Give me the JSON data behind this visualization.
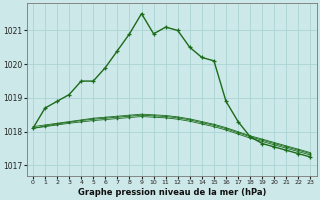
{
  "bg_color": "#cce8e8",
  "grid_color": "#aad4d4",
  "line_color": "#1a6b1a",
  "title": "Graphe pression niveau de la mer (hPa)",
  "xlim": [
    -0.5,
    23.5
  ],
  "ylim": [
    1016.7,
    1021.8
  ],
  "yticks": [
    1017,
    1018,
    1019,
    1020,
    1021
  ],
  "xticks": [
    0,
    1,
    2,
    3,
    4,
    5,
    6,
    7,
    8,
    9,
    10,
    11,
    12,
    13,
    14,
    15,
    16,
    17,
    18,
    19,
    20,
    21,
    22,
    23
  ],
  "hours": [
    0,
    1,
    2,
    3,
    4,
    5,
    6,
    7,
    8,
    9,
    10,
    11,
    12,
    13,
    14,
    15,
    16,
    17,
    18,
    19,
    20,
    21,
    22,
    23
  ],
  "series1": [
    1018.1,
    1018.7,
    1018.9,
    1019.1,
    1019.5,
    1019.5,
    1019.9,
    1020.4,
    1020.9,
    1021.5,
    1020.9,
    1021.1,
    1021.0,
    1020.5,
    1020.2,
    1020.1,
    1018.9,
    1018.3,
    1017.85,
    1017.65,
    1017.55,
    1017.45,
    1017.35,
    1017.25
  ],
  "series2": [
    1018.15,
    1018.2,
    1018.25,
    1018.3,
    1018.35,
    1018.4,
    1018.43,
    1018.46,
    1018.49,
    1018.52,
    1018.5,
    1018.48,
    1018.44,
    1018.38,
    1018.3,
    1018.22,
    1018.12,
    1018.0,
    1017.88,
    1017.78,
    1017.68,
    1017.58,
    1017.48,
    1017.38
  ],
  "series3": [
    1018.1,
    1018.17,
    1018.23,
    1018.28,
    1018.33,
    1018.37,
    1018.4,
    1018.43,
    1018.46,
    1018.49,
    1018.47,
    1018.45,
    1018.41,
    1018.35,
    1018.27,
    1018.19,
    1018.09,
    1017.97,
    1017.85,
    1017.75,
    1017.65,
    1017.55,
    1017.45,
    1017.35
  ],
  "series4": [
    1018.1,
    1018.15,
    1018.2,
    1018.25,
    1018.29,
    1018.33,
    1018.36,
    1018.39,
    1018.42,
    1018.45,
    1018.43,
    1018.41,
    1018.37,
    1018.31,
    1018.23,
    1018.15,
    1018.05,
    1017.93,
    1017.81,
    1017.71,
    1017.61,
    1017.51,
    1017.41,
    1017.31
  ]
}
